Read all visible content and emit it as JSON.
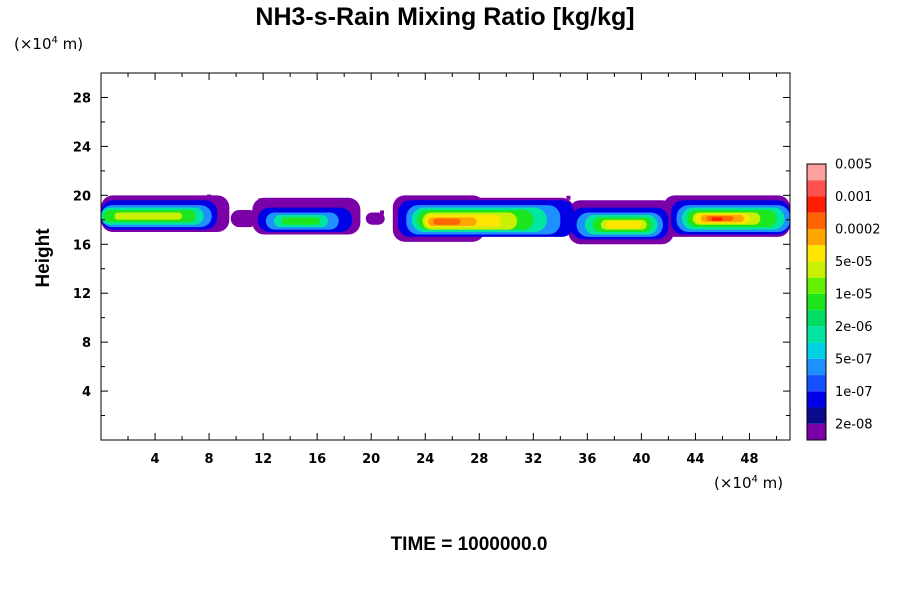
{
  "chart_data": {
    "type": "heatmap",
    "title": "NH3-s-Rain Mixing Ratio [kg/kg]",
    "ylabel": "Height",
    "xlabel": "",
    "x_unit_prefix": "(×10",
    "x_unit_exp": "4",
    "x_unit_suffix": " m)",
    "y_unit_prefix": "(×10",
    "y_unit_exp": "4",
    "y_unit_suffix": " m)",
    "xlim": [
      0,
      51
    ],
    "ylim": [
      0,
      30
    ],
    "x_ticks": [
      4,
      8,
      12,
      16,
      20,
      24,
      28,
      32,
      36,
      40,
      44,
      48
    ],
    "y_ticks": [
      4,
      8,
      12,
      16,
      20,
      24,
      28
    ],
    "minor_tick_step": 2,
    "grid": false,
    "colorbar": {
      "position": "right",
      "colors": [
        "#7a00a8",
        "#0a0a8c",
        "#0000e6",
        "#1450ff",
        "#1e90ff",
        "#00d2e6",
        "#00e6a0",
        "#00dc64",
        "#1ee61e",
        "#64f000",
        "#c8f000",
        "#ffe600",
        "#ffa500",
        "#ff6400",
        "#ff1e00",
        "#ff5050",
        "#ffa0a0"
      ],
      "labels": [
        "2e-08",
        "1e-07",
        "5e-07",
        "2e-06",
        "1e-05",
        "5e-05",
        "0.0002",
        "0.001",
        "0.005"
      ]
    },
    "cloud_layers": [
      {
        "level": 0,
        "blobs": [
          [
            0,
            17.0,
            9.5,
            20.0
          ],
          [
            9.6,
            17.4,
            11.6,
            18.8
          ],
          [
            11.2,
            16.8,
            19.2,
            19.8
          ],
          [
            19.6,
            17.6,
            21.0,
            18.6
          ],
          [
            21.6,
            16.2,
            28.4,
            20.0
          ],
          [
            26.4,
            16.8,
            35.0,
            19.8
          ],
          [
            34.6,
            16.0,
            42.4,
            19.6
          ],
          [
            41.6,
            16.6,
            51,
            20.0
          ]
        ]
      },
      {
        "level": 2,
        "blobs": [
          [
            0,
            17.2,
            8.6,
            19.6
          ],
          [
            11.6,
            17.0,
            18.6,
            19.0
          ],
          [
            22.0,
            16.6,
            35.0,
            19.6
          ],
          [
            34.8,
            16.4,
            42.0,
            19.0
          ],
          [
            42.2,
            16.8,
            51,
            19.6
          ]
        ]
      },
      {
        "level": 4,
        "blobs": [
          [
            0,
            17.4,
            8.2,
            19.2
          ],
          [
            12.2,
            17.2,
            17.6,
            18.6
          ],
          [
            22.6,
            16.8,
            34.0,
            19.2
          ],
          [
            35.2,
            16.6,
            41.6,
            18.6
          ],
          [
            42.6,
            17.0,
            51,
            19.2
          ]
        ]
      },
      {
        "level": 6,
        "blobs": [
          [
            0,
            17.6,
            7.6,
            19.0
          ],
          [
            12.8,
            17.4,
            16.8,
            18.4
          ],
          [
            23.0,
            17.0,
            33.0,
            19.0
          ],
          [
            35.8,
            16.8,
            41.2,
            18.4
          ],
          [
            43.0,
            17.2,
            50.6,
            19.0
          ]
        ]
      },
      {
        "level": 8,
        "blobs": [
          [
            0.2,
            17.8,
            7.0,
            18.8
          ],
          [
            13.4,
            17.6,
            16.2,
            18.2
          ],
          [
            23.4,
            17.2,
            32.0,
            18.8
          ],
          [
            36.4,
            17.0,
            40.8,
            18.2
          ],
          [
            43.4,
            17.4,
            50.0,
            18.8
          ]
        ]
      },
      {
        "level": 10,
        "blobs": [
          [
            1.0,
            18.0,
            6.0,
            18.6
          ],
          [
            23.8,
            17.2,
            30.8,
            18.6
          ],
          [
            37.0,
            17.2,
            40.4,
            18.0
          ],
          [
            43.8,
            17.6,
            48.8,
            18.6
          ]
        ]
      },
      {
        "level": 11,
        "blobs": [
          [
            24.0,
            17.4,
            29.6,
            18.4
          ],
          [
            37.4,
            17.3,
            40.0,
            17.9
          ],
          [
            44.0,
            17.7,
            48.0,
            18.5
          ]
        ]
      },
      {
        "level": 12,
        "blobs": [
          [
            24.2,
            17.5,
            27.8,
            18.2
          ],
          [
            44.4,
            17.8,
            47.6,
            18.4
          ]
        ]
      },
      {
        "level": 13,
        "blobs": [
          [
            24.6,
            17.6,
            26.6,
            18.1
          ],
          [
            44.8,
            17.9,
            46.8,
            18.3
          ]
        ]
      },
      {
        "level": 14,
        "blobs": [
          [
            45.2,
            17.9,
            46.0,
            18.2
          ]
        ]
      }
    ],
    "specks": [
      [
        10.2,
        18.6
      ],
      [
        10.8,
        18.1
      ],
      [
        11.4,
        18.4
      ],
      [
        19.8,
        18.2
      ],
      [
        20.8,
        18.6
      ],
      [
        11.8,
        19.6
      ],
      [
        34.6,
        19.8
      ],
      [
        8.0,
        19.9
      ]
    ],
    "annotation": {
      "time_label": "TIME = 1000000.0"
    }
  }
}
